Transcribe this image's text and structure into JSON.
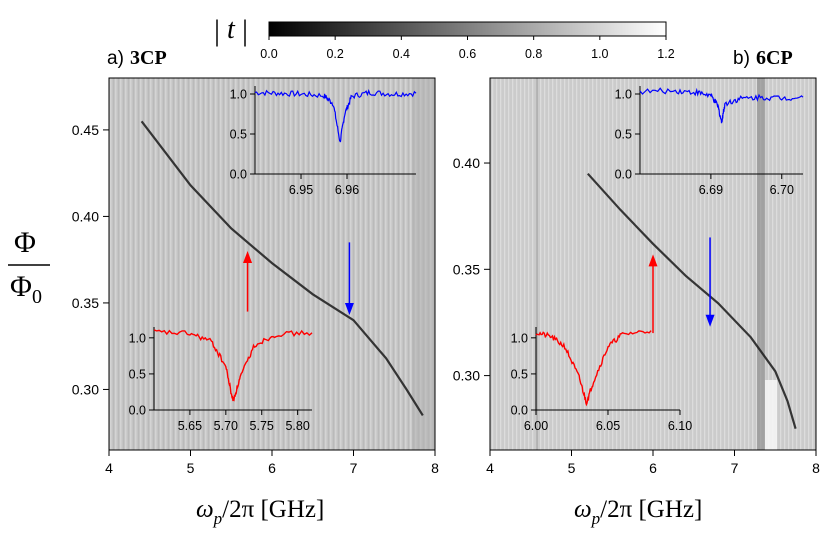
{
  "colorbar": {
    "label": "|t|",
    "ticks": [
      "0.0",
      "0.2",
      "0.4",
      "0.6",
      "0.8",
      "1.0",
      "1.2"
    ],
    "range": [
      0.0,
      1.2
    ]
  },
  "panels": [
    {
      "label_prefix": "a)",
      "label_name": "3CP",
      "x_ticks": [
        "4",
        "5",
        "6",
        "7",
        "8"
      ],
      "y_ticks": [
        "0.30",
        "0.35",
        "0.40",
        "0.45"
      ],
      "xlabel_omega": "ω",
      "xlabel_sub": "p",
      "xlabel_rest": "/2π  [GHz]",
      "inset_blue_x_ticks": [
        "6.95",
        "6.96"
      ],
      "inset_blue_y_ticks": [
        "0.0",
        "0.5",
        "1.0"
      ],
      "inset_red_x_ticks": [
        "5.65",
        "5.70",
        "5.75",
        "5.80"
      ],
      "inset_red_y_ticks": [
        "0.0",
        "0.5",
        "1.0"
      ]
    },
    {
      "label_prefix": "b)",
      "label_name": "6CP",
      "x_ticks": [
        "4",
        "5",
        "6",
        "7",
        "8"
      ],
      "y_ticks": [
        "0.30",
        "0.35",
        "0.40"
      ],
      "xlabel_omega": "ω",
      "xlabel_sub": "p",
      "xlabel_rest": "/2π  [GHz]",
      "inset_blue_x_ticks": [
        "6.69",
        "6.70"
      ],
      "inset_blue_y_ticks": [
        "0.0",
        "0.5",
        "1.0"
      ],
      "inset_red_x_ticks": [
        "6.00",
        "6.05",
        "6.10"
      ],
      "inset_red_y_ticks": [
        "0.0",
        "0.5",
        "1.0"
      ]
    }
  ],
  "ylabel_num": "Φ",
  "ylabel_den": "Φ",
  "ylabel_den_sub": "0",
  "colors": {
    "red": "#ff0000",
    "blue": "#0000ff",
    "map_bg": "#c8c8c8",
    "map_bg_b": "#d2d2d2"
  },
  "chart_data": [
    {
      "type": "heatmap",
      "title": "a) 3CP",
      "xlabel": "ωp/2π [GHz]",
      "ylabel": "Φ/Φ0",
      "xlim": [
        4,
        8
      ],
      "ylim": [
        0.265,
        0.48
      ],
      "colorbar_label": "|t|",
      "colorbar_range": [
        0.0,
        1.2
      ],
      "resonance": {
        "x": [
          4.4,
          5.0,
          5.5,
          6.0,
          6.5,
          7.0,
          7.4,
          7.65,
          7.85
        ],
        "y": [
          0.455,
          0.418,
          0.393,
          0.373,
          0.355,
          0.34,
          0.318,
          0.3,
          0.285
        ]
      },
      "arrows": [
        {
          "color": "red",
          "x": 5.7,
          "y_from": 0.345,
          "y_to": 0.38,
          "direction": "up"
        },
        {
          "color": "blue",
          "x": 6.95,
          "y_from": 0.385,
          "y_to": 0.343,
          "direction": "down"
        }
      ],
      "insets": [
        {
          "color": "blue",
          "x": [
            6.94,
            6.945,
            6.95,
            6.955,
            6.957,
            6.9585,
            6.9595,
            6.961,
            6.965,
            6.97,
            6.975
          ],
          "y": [
            1.02,
            1.01,
            1.0,
            0.98,
            0.88,
            0.4,
            0.75,
            0.97,
            1.02,
            1.0,
            1.01
          ],
          "xlim": [
            6.94,
            6.975
          ],
          "ylim": [
            0.0,
            1.1
          ]
        },
        {
          "color": "red",
          "x": [
            5.6,
            5.65,
            5.68,
            5.7,
            5.71,
            5.72,
            5.74,
            5.77,
            5.82
          ],
          "y": [
            1.08,
            1.06,
            0.95,
            0.6,
            0.12,
            0.45,
            0.9,
            1.05,
            1.07
          ],
          "xlim": [
            5.6,
            5.82
          ],
          "ylim": [
            0.0,
            1.15
          ]
        }
      ]
    },
    {
      "type": "heatmap",
      "title": "b) 6CP",
      "xlabel": "ωp/2π [GHz]",
      "ylabel": "Φ/Φ0",
      "xlim": [
        4,
        8
      ],
      "ylim": [
        0.265,
        0.44
      ],
      "colorbar_label": "|t|",
      "colorbar_range": [
        0.0,
        1.2
      ],
      "resonance": {
        "x": [
          5.2,
          5.6,
          6.0,
          6.4,
          6.8,
          7.2,
          7.5,
          7.65,
          7.75
        ],
        "y": [
          0.395,
          0.378,
          0.362,
          0.347,
          0.334,
          0.318,
          0.302,
          0.288,
          0.275
        ]
      },
      "arrows": [
        {
          "color": "red",
          "x": 6.0,
          "y_from": 0.32,
          "y_to": 0.357,
          "direction": "up"
        },
        {
          "color": "blue",
          "x": 6.7,
          "y_from": 0.365,
          "y_to": 0.323,
          "direction": "down"
        }
      ],
      "insets": [
        {
          "color": "blue",
          "x": [
            6.68,
            6.685,
            6.688,
            6.69,
            6.691,
            6.6915,
            6.692,
            6.694,
            6.697,
            6.7,
            6.703
          ],
          "y": [
            1.03,
            1.04,
            1.02,
            0.98,
            0.85,
            0.65,
            0.88,
            0.94,
            0.96,
            0.95,
            0.96
          ],
          "xlim": [
            6.68,
            6.703
          ],
          "ylim": [
            0.0,
            1.1
          ]
        },
        {
          "color": "red",
          "x": [
            6.0,
            6.01,
            6.02,
            6.03,
            6.035,
            6.04,
            6.05,
            6.06,
            6.08
          ],
          "y": [
            1.07,
            1.02,
            0.88,
            0.45,
            0.1,
            0.4,
            0.88,
            1.05,
            1.1
          ],
          "xlim": [
            6.0,
            6.1
          ],
          "ylim": [
            0.0,
            1.15
          ]
        }
      ]
    }
  ]
}
